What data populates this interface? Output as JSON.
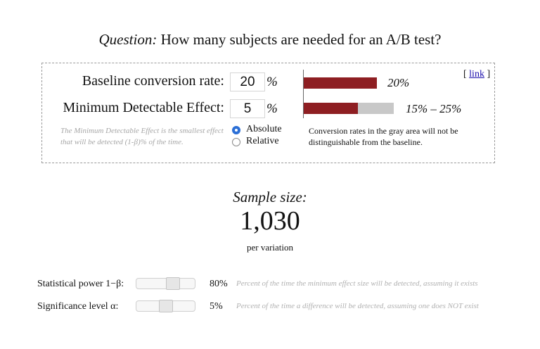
{
  "question": {
    "label": "Question:",
    "text": "How many subjects are needed for an A/B test?"
  },
  "inputs": {
    "baseline": {
      "label": "Baseline conversion rate:",
      "value": "20",
      "unit": "%"
    },
    "mde": {
      "label": "Minimum Detectable Effect:",
      "value": "5",
      "unit": "%"
    }
  },
  "link": {
    "open": "[",
    "label": "link",
    "close": "]"
  },
  "bars": {
    "baseline": {
      "text": "20%",
      "fill_fraction": 1.0
    },
    "mde": {
      "text": "15% – 25%",
      "fill_fraction": 0.6
    }
  },
  "hint": "The Minimum Detectable Effect is the smallest effect that will be detected (1-β)% of the time.",
  "effect_type": {
    "options": [
      "Absolute",
      "Relative"
    ],
    "selected": "Absolute"
  },
  "gray_note": "Conversion rates in the gray area will not be distinguishable from the baseline.",
  "result": {
    "title": "Sample size:",
    "value": "1,030",
    "unit": "per variation"
  },
  "params": [
    {
      "label": "Statistical power 1−β:",
      "value": "80%",
      "level": 0.8,
      "description": "Percent of the time the minimum effect size will be detected, assuming it exists"
    },
    {
      "label": "Significance level α:",
      "value": "5%",
      "level": 0.05,
      "description": "Percent of the time a difference will be detected, assuming one does NOT exist"
    }
  ],
  "colors": {
    "bar_fill": "#8e1e22",
    "bar_gray": "#c8c8c8",
    "radio_checked": "#2b6fd6",
    "link": "#1a0dab"
  }
}
